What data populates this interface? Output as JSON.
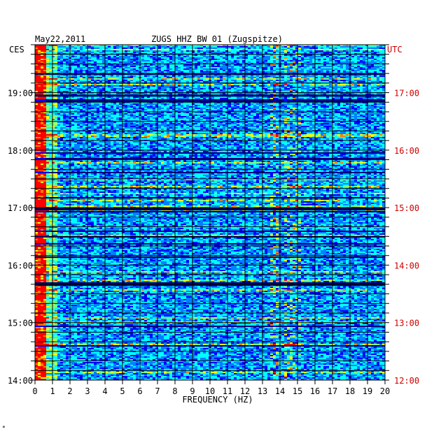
{
  "chart_data": {
    "type": "heatmap",
    "title_left": "May22,2011",
    "title_center": "ZUGS HHZ BW 01 (Zugspitze)",
    "left_timezone": "CES",
    "right_timezone": "UTC",
    "xlabel": "FREQUENCY (HZ)",
    "xlim": [
      0,
      20
    ],
    "x_ticks": [
      "0",
      "1",
      "2",
      "3",
      "4",
      "5",
      "6",
      "7",
      "8",
      "9",
      "10",
      "11",
      "12",
      "13",
      "14",
      "15",
      "16",
      "17",
      "18",
      "19",
      "20"
    ],
    "left_time_ticks": [
      "19:00",
      "18:00",
      "17:00",
      "16:00",
      "15:00",
      "14:00"
    ],
    "right_time_ticks": [
      "17:00",
      "16:00",
      "15:00",
      "14:00",
      "13:00",
      "12:00"
    ],
    "time_range_local": [
      "14:00",
      "19:50"
    ],
    "colormap": [
      "#00007f",
      "#0000ff",
      "#0080ff",
      "#00ffff",
      "#80ff80",
      "#ffff00",
      "#ff8000",
      "#ff0000"
    ],
    "right_axis_color": "#cc0000",
    "gridlines": true,
    "corner_mark": "*"
  }
}
